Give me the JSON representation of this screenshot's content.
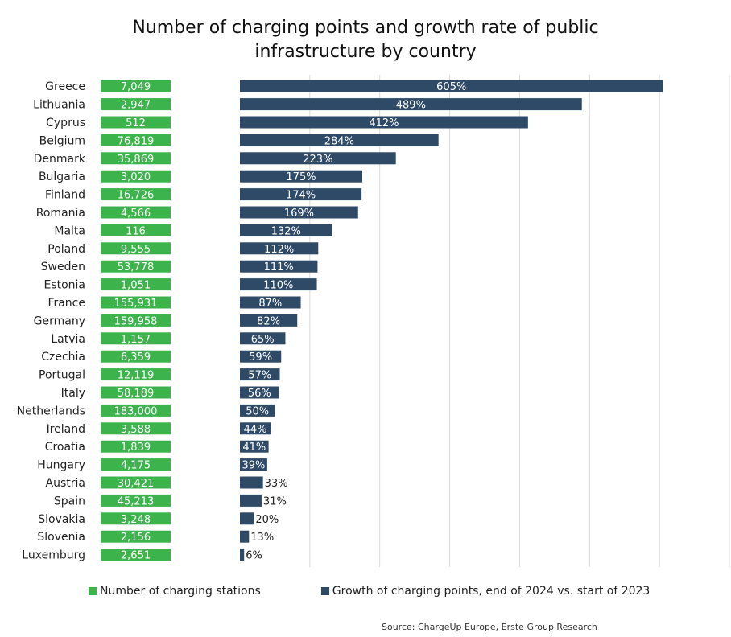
{
  "chart_data": {
    "type": "bar",
    "title_lines": [
      "Number of charging points and growth rate of public",
      "infrastructure by country"
    ],
    "categories": [
      "Greece",
      "Lithuania",
      "Cyprus",
      "Belgium",
      "Denmark",
      "Bulgaria",
      "Finland",
      "Romania",
      "Malta",
      "Poland",
      "Sweden",
      "Estonia",
      "France",
      "Germany",
      "Latvia",
      "Czechia",
      "Portugal",
      "Italy",
      "Netherlands",
      "Ireland",
      "Croatia",
      "Hungary",
      "Austria",
      "Spain",
      "Slovakia",
      "Slovenia",
      "Luxemburg"
    ],
    "series": [
      {
        "name": "Number of charging stations",
        "color": "#3cb44b",
        "values": [
          7049,
          2947,
          512,
          76819,
          35869,
          3020,
          16726,
          4566,
          116,
          9555,
          53778,
          1051,
          155931,
          159958,
          1157,
          6359,
          12119,
          58189,
          183000,
          3588,
          1839,
          4175,
          30421,
          45213,
          3248,
          2156,
          2651
        ],
        "labels": [
          "7,049",
          "2,947",
          "512",
          "76,819",
          "35,869",
          "3,020",
          "16,726",
          "4,566",
          "116",
          "9,555",
          "53,778",
          "1,051",
          "155,931",
          "159,958",
          "1,157",
          "6,359",
          "12,119",
          "58,189",
          "183,000",
          "3,588",
          "1,839",
          "4,175",
          "30,421",
          "45,213",
          "3,248",
          "2,156",
          "2,651"
        ]
      },
      {
        "name": "Growth of charging points, end of 2024 vs. start of 2023",
        "color": "#2e4a66",
        "values": [
          605,
          489,
          412,
          284,
          223,
          175,
          174,
          169,
          132,
          112,
          111,
          110,
          87,
          82,
          65,
          59,
          57,
          56,
          50,
          44,
          41,
          39,
          33,
          31,
          20,
          13,
          6
        ],
        "labels": [
          "605%",
          "489%",
          "412%",
          "284%",
          "223%",
          "175%",
          "174%",
          "169%",
          "132%",
          "112%",
          "111%",
          "110%",
          "87%",
          "82%",
          "65%",
          "59%",
          "57%",
          "56%",
          "50%",
          "44%",
          "41%",
          "39%",
          "33%",
          "31%",
          "20%",
          "13%",
          "6%"
        ]
      }
    ],
    "xlim": [
      0,
      700
    ],
    "grid": true,
    "legend_position": "bottom",
    "source": "Source: ChargeUp Europe, Erste Group Research"
  }
}
